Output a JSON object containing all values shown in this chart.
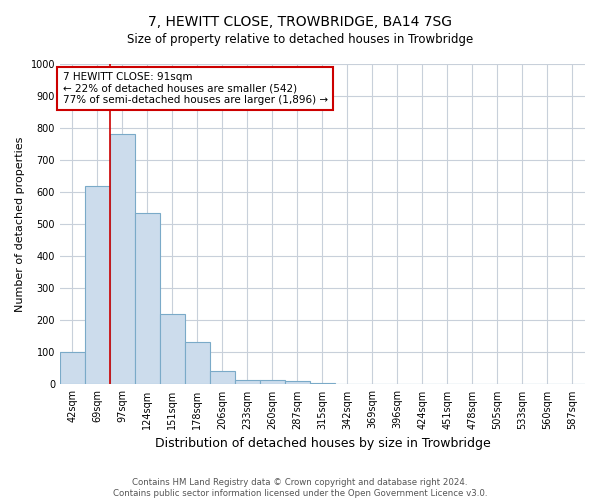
{
  "title": "7, HEWITT CLOSE, TROWBRIDGE, BA14 7SG",
  "subtitle": "Size of property relative to detached houses in Trowbridge",
  "xlabel": "Distribution of detached houses by size in Trowbridge",
  "ylabel": "Number of detached properties",
  "bar_categories": [
    "42sqm",
    "69sqm",
    "97sqm",
    "124sqm",
    "151sqm",
    "178sqm",
    "206sqm",
    "233sqm",
    "260sqm",
    "287sqm",
    "315sqm",
    "342sqm",
    "369sqm",
    "396sqm",
    "424sqm",
    "451sqm",
    "478sqm",
    "505sqm",
    "533sqm",
    "560sqm",
    "587sqm"
  ],
  "bar_values": [
    100,
    620,
    780,
    535,
    220,
    133,
    43,
    15,
    15,
    10,
    5,
    0,
    0,
    0,
    0,
    0,
    0,
    0,
    0,
    0,
    0
  ],
  "bar_color": "#ccdcec",
  "bar_edge_color": "#7aaac8",
  "ylim": [
    0,
    1000
  ],
  "yticks": [
    0,
    100,
    200,
    300,
    400,
    500,
    600,
    700,
    800,
    900,
    1000
  ],
  "property_line_color": "#cc0000",
  "property_line_index": 2,
  "annotation_text": "7 HEWITT CLOSE: 91sqm\n← 22% of detached houses are smaller (542)\n77% of semi-detached houses are larger (1,896) →",
  "annotation_box_color": "#cc0000",
  "footer_line1": "Contains HM Land Registry data © Crown copyright and database right 2024.",
  "footer_line2": "Contains public sector information licensed under the Open Government Licence v3.0.",
  "background_color": "#ffffff",
  "grid_color": "#c8d0da",
  "title_fontsize": 10,
  "subtitle_fontsize": 8.5,
  "xlabel_fontsize": 9,
  "ylabel_fontsize": 8,
  "tick_fontsize": 7,
  "annotation_fontsize": 7.5
}
